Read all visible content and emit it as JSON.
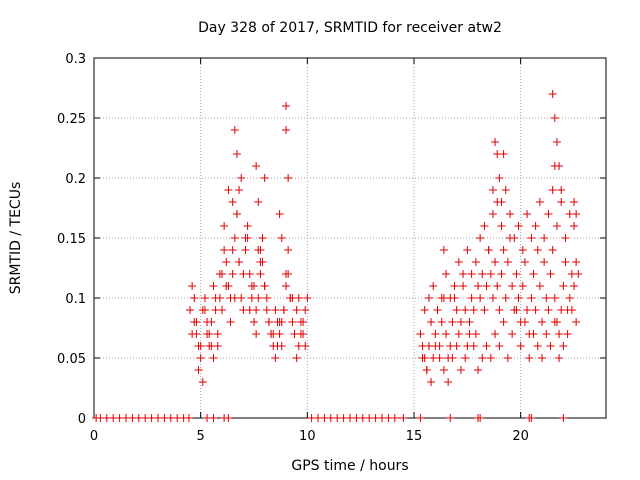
{
  "chart_data": {
    "type": "scatter",
    "title": "Day 328 of 2017, SRMTID for receiver atw2",
    "xlabel": "GPS time / hours",
    "ylabel": "SRMTID / TECUs",
    "xlim": [
      0,
      24
    ],
    "ylim": [
      0,
      0.3
    ],
    "grid": true,
    "marker": "+",
    "color": "#e00000",
    "xticks": [
      {
        "value": 0,
        "label": "0"
      },
      {
        "value": 5,
        "label": "5"
      },
      {
        "value": 10,
        "label": "10"
      },
      {
        "value": 15,
        "label": "15"
      },
      {
        "value": 20,
        "label": "20"
      }
    ],
    "yticks": [
      {
        "value": 0,
        "label": "0"
      },
      {
        "value": 0.05,
        "label": "0.05"
      },
      {
        "value": 0.1,
        "label": "0.1"
      },
      {
        "value": 0.15,
        "label": "0.15"
      },
      {
        "value": 0.2,
        "label": "0.2"
      },
      {
        "value": 0.25,
        "label": "0.25"
      },
      {
        "value": 0.3,
        "label": "0.3"
      }
    ],
    "series": [
      {
        "name": "SRMTID",
        "x": [
          0.1,
          0.3,
          0.6,
          0.9,
          1.2,
          1.5,
          1.8,
          2.1,
          2.4,
          2.7,
          3.0,
          3.3,
          3.6,
          3.9,
          4.2,
          4.45,
          5.3,
          5.6,
          6.1,
          6.3,
          10.2,
          10.5,
          10.8,
          11.1,
          11.4,
          11.7,
          12.0,
          12.3,
          12.6,
          12.9,
          13.2,
          13.5,
          13.8,
          14.1,
          14.5,
          15.3,
          16.7,
          18.0,
          18.1,
          20.4,
          20.5,
          22.0,
          4.5,
          4.6,
          4.7,
          4.8,
          4.9,
          5.0,
          5.1,
          5.2,
          5.3,
          5.4,
          5.5,
          5.6,
          5.7,
          5.8,
          5.9,
          6.0,
          6.1,
          6.2,
          6.3,
          6.4,
          6.5,
          6.6,
          6.7,
          6.8,
          6.9,
          7.0,
          7.1,
          7.2,
          7.3,
          7.4,
          7.5,
          7.6,
          7.7,
          7.8,
          7.9,
          8.0,
          8.1,
          8.2,
          8.3,
          8.4,
          8.5,
          8.6,
          8.7,
          8.8,
          8.9,
          9.0,
          9.1,
          9.2,
          9.3,
          9.4,
          9.5,
          9.6,
          9.7,
          9.8,
          9.9,
          10.0,
          4.6,
          4.8,
          5.0,
          5.2,
          5.4,
          5.6,
          5.8,
          6.0,
          6.2,
          6.4,
          6.6,
          6.8,
          7.0,
          7.2,
          7.4,
          7.6,
          7.8,
          8.0,
          8.2,
          8.4,
          8.6,
          8.8,
          9.0,
          9.2,
          9.4,
          9.6,
          9.8,
          4.7,
          4.9,
          5.1,
          5.3,
          5.5,
          5.7,
          5.9,
          6.1,
          6.3,
          6.5,
          6.7,
          6.9,
          7.1,
          7.3,
          7.5,
          7.7,
          7.9,
          8.1,
          8.3,
          8.5,
          8.7,
          8.9,
          9.1,
          9.3,
          9.5,
          9.7,
          9.9,
          6.6,
          6.7,
          6.8,
          7.6,
          7.7,
          8.0,
          8.7,
          8.8,
          9.0,
          9.0,
          9.1,
          6.5,
          7.8,
          15.3,
          15.4,
          15.5,
          15.6,
          15.7,
          15.8,
          15.9,
          16.0,
          16.1,
          16.2,
          16.3,
          16.4,
          16.5,
          16.6,
          16.7,
          16.8,
          16.9,
          17.0,
          17.1,
          17.2,
          17.3,
          17.4,
          17.5,
          17.6,
          17.7,
          17.8,
          17.9,
          18.0,
          18.1,
          18.2,
          18.3,
          18.4,
          18.5,
          18.6,
          18.7,
          18.8,
          18.9,
          19.0,
          19.1,
          19.2,
          19.3,
          19.4,
          19.5,
          19.6,
          19.7,
          19.8,
          19.9,
          20.0,
          20.1,
          20.2,
          20.3,
          20.4,
          20.5,
          20.6,
          20.7,
          20.8,
          20.9,
          21.0,
          21.1,
          21.2,
          21.3,
          21.4,
          21.5,
          21.6,
          21.7,
          21.8,
          21.9,
          22.0,
          22.1,
          22.2,
          22.3,
          22.4,
          22.5,
          22.6,
          22.7,
          15.4,
          15.6,
          15.8,
          16.0,
          16.2,
          16.4,
          16.6,
          16.8,
          17.0,
          17.2,
          17.4,
          17.6,
          17.8,
          18.0,
          18.2,
          18.4,
          18.6,
          18.8,
          19.0,
          19.2,
          19.4,
          19.6,
          19.8,
          20.0,
          20.2,
          20.4,
          20.6,
          20.8,
          21.0,
          21.2,
          21.4,
          21.6,
          21.8,
          22.0,
          22.2,
          22.4,
          22.6,
          15.5,
          15.7,
          15.9,
          16.1,
          16.3,
          16.5,
          16.7,
          16.9,
          17.1,
          17.3,
          17.5,
          17.7,
          17.9,
          18.1,
          18.3,
          18.5,
          18.7,
          18.9,
          19.1,
          19.3,
          19.5,
          19.7,
          19.9,
          20.1,
          20.3,
          20.5,
          20.7,
          20.9,
          21.1,
          21.3,
          21.5,
          21.7,
          21.9,
          22.1,
          22.3,
          22.5,
          18.7,
          18.8,
          18.9,
          19.0,
          19.2,
          19.1,
          21.5,
          21.6,
          21.7,
          21.8,
          21.6,
          21.9,
          22.5,
          22.6,
          16.4
        ],
        "y": [
          0,
          0,
          0,
          0,
          0,
          0,
          0,
          0,
          0,
          0,
          0,
          0,
          0,
          0,
          0,
          0,
          0,
          0,
          0,
          0,
          0,
          0,
          0,
          0,
          0,
          0,
          0,
          0,
          0,
          0,
          0,
          0,
          0,
          0,
          0,
          0,
          0,
          0,
          0,
          0,
          0,
          0,
          0.09,
          0.11,
          0.08,
          0.07,
          0.06,
          0.05,
          0.09,
          0.1,
          0.07,
          0.06,
          0.08,
          0.11,
          0.09,
          0.07,
          0.1,
          0.12,
          0.14,
          0.13,
          0.11,
          0.1,
          0.12,
          0.15,
          0.17,
          0.13,
          0.1,
          0.09,
          0.14,
          0.16,
          0.12,
          0.11,
          0.08,
          0.07,
          0.1,
          0.13,
          0.15,
          0.11,
          0.09,
          0.08,
          0.07,
          0.06,
          0.09,
          0.08,
          0.07,
          0.06,
          0.09,
          0.12,
          0.14,
          0.1,
          0.08,
          0.07,
          0.09,
          0.1,
          0.08,
          0.07,
          0.09,
          0.1,
          0.07,
          0.08,
          0.06,
          0.09,
          0.07,
          0.05,
          0.06,
          0.09,
          0.11,
          0.08,
          0.1,
          0.13,
          0.12,
          0.15,
          0.1,
          0.09,
          0.12,
          0.11,
          0.08,
          0.07,
          0.06,
          0.08,
          0.11,
          0.1,
          0.07,
          0.06,
          0.08,
          0.1,
          0.04,
          0.03,
          0.08,
          0.06,
          0.1,
          0.12,
          0.16,
          0.19,
          0.14,
          0.17,
          0.2,
          0.15,
          0.09,
          0.11,
          0.14,
          0.13,
          0.1,
          0.07,
          0.05,
          0.08,
          0.09,
          0.12,
          0.1,
          0.05,
          0.07,
          0.06,
          0.24,
          0.22,
          0.19,
          0.21,
          0.18,
          0.2,
          0.17,
          0.15,
          0.26,
          0.24,
          0.2,
          0.18,
          0.14,
          0.07,
          0.06,
          0.05,
          0.04,
          0.06,
          0.08,
          0.05,
          0.07,
          0.09,
          0.06,
          0.08,
          0.1,
          0.07,
          0.05,
          0.06,
          0.08,
          0.1,
          0.09,
          0.07,
          0.08,
          0.11,
          0.09,
          0.06,
          0.08,
          0.1,
          0.09,
          0.07,
          0.11,
          0.1,
          0.12,
          0.09,
          0.11,
          0.14,
          0.12,
          0.1,
          0.13,
          0.11,
          0.09,
          0.12,
          0.14,
          0.1,
          0.13,
          0.15,
          0.11,
          0.09,
          0.12,
          0.1,
          0.08,
          0.11,
          0.13,
          0.09,
          0.07,
          0.1,
          0.12,
          0.09,
          0.14,
          0.11,
          0.08,
          0.13,
          0.1,
          0.09,
          0.12,
          0.14,
          0.1,
          0.08,
          0.07,
          0.09,
          0.11,
          0.13,
          0.09,
          0.1,
          0.12,
          0.11,
          0.13,
          0.12,
          0.05,
          0.04,
          0.03,
          0.06,
          0.05,
          0.04,
          0.03,
          0.05,
          0.06,
          0.04,
          0.05,
          0.07,
          0.06,
          0.04,
          0.05,
          0.06,
          0.05,
          0.07,
          0.06,
          0.08,
          0.05,
          0.07,
          0.09,
          0.06,
          0.08,
          0.05,
          0.07,
          0.06,
          0.05,
          0.07,
          0.06,
          0.08,
          0.05,
          0.06,
          0.07,
          0.09,
          0.08,
          0.09,
          0.1,
          0.11,
          0.09,
          0.1,
          0.12,
          0.1,
          0.11,
          0.13,
          0.12,
          0.14,
          0.12,
          0.13,
          0.15,
          0.16,
          0.14,
          0.17,
          0.18,
          0.16,
          0.19,
          0.17,
          0.15,
          0.16,
          0.14,
          0.17,
          0.15,
          0.16,
          0.18,
          0.15,
          0.17,
          0.19,
          0.16,
          0.18,
          0.15,
          0.17,
          0.16,
          0.19,
          0.23,
          0.22,
          0.2,
          0.22,
          0.18,
          0.27,
          0.25,
          0.23,
          0.21,
          0.21,
          0.19,
          0.18,
          0.17,
          0.14
        ]
      }
    ]
  }
}
